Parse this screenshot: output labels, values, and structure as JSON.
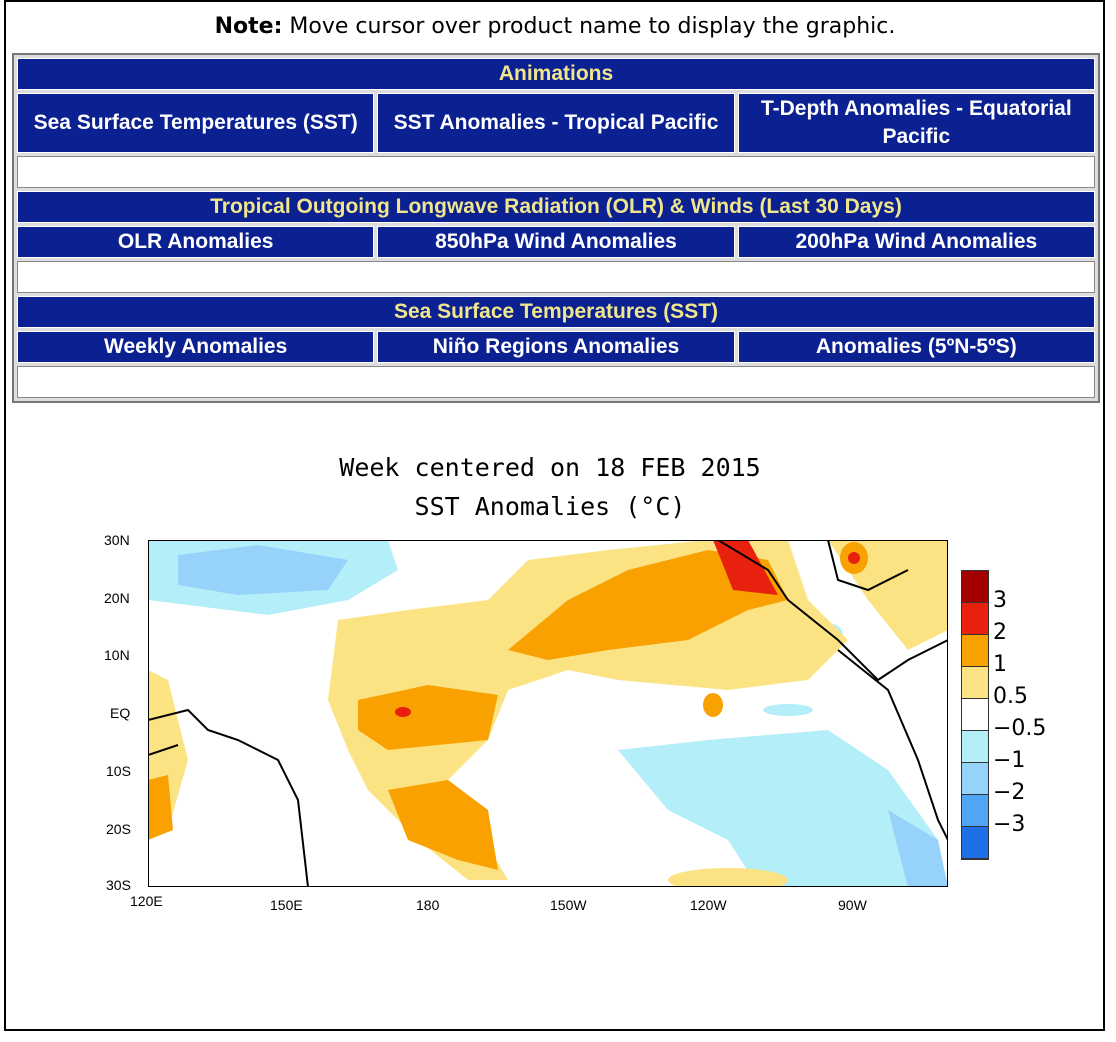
{
  "note": {
    "bold": "Note:",
    "text": " Move cursor over product name to display the graphic."
  },
  "sections": [
    {
      "title": "Animations",
      "items": [
        "Sea Surface Temperatures (SST)",
        "SST Anomalies - Tropical Pacific",
        "T-Depth Anomalies - Equatorial Pacific"
      ]
    },
    {
      "title": "Tropical Outgoing Longwave Radiation (OLR) & Winds (Last 30 Days)",
      "items": [
        "OLR Anomalies",
        "850hPa Wind Anomalies",
        "200hPa Wind Anomalies"
      ]
    },
    {
      "title": "Sea Surface Temperatures (SST)",
      "items": [
        "Weekly Anomalies",
        "Niño Regions Anomalies",
        "Anomalies (5ºN-5ºS)"
      ]
    }
  ],
  "chart_data": {
    "type": "heatmap",
    "title": "Week centered on 18 FEB 2015",
    "subtitle": "SST Anomalies (°C)",
    "xticks": [
      "120E",
      "150E",
      "180",
      "150W",
      "120W",
      "90W"
    ],
    "yticks": [
      "30N",
      "20N",
      "10N",
      "EQ",
      "10S",
      "20S",
      "30S"
    ],
    "xlim": [
      "120E",
      "70W"
    ],
    "ylim": [
      "30S",
      "30N"
    ],
    "colorbar": {
      "labels": [
        "3",
        "2",
        "1",
        "0.5",
        "−0.5",
        "−1",
        "−2",
        "−3"
      ],
      "colors": [
        "#a50000",
        "#e8210e",
        "#f9a100",
        "#fbe383",
        "#ffffff",
        "#b4eef8",
        "#96d2fa",
        "#50a5f5",
        "#1e6ee6"
      ]
    }
  }
}
